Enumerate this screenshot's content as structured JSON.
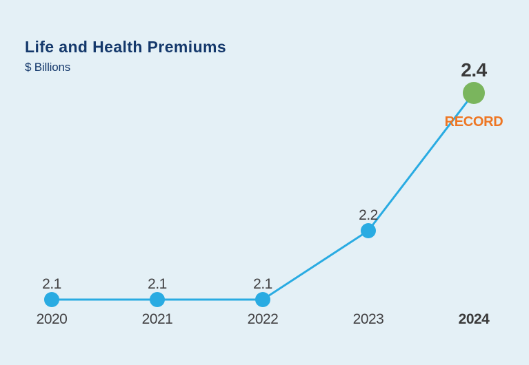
{
  "page": {
    "title": "Life and Health Premiums",
    "subtitle": "$ Billions"
  },
  "chart_data": {
    "type": "line",
    "title": "Life and Health Premiums",
    "ylabel": "$ Billions",
    "xlabel": "",
    "categories": [
      "2020",
      "2021",
      "2022",
      "2023",
      "2024"
    ],
    "values": [
      2.1,
      2.1,
      2.1,
      2.2,
      2.4
    ],
    "value_labels": [
      "2.1",
      "2.1",
      "2.1",
      "2.2",
      "2.4"
    ],
    "highlight_index": 4,
    "annotation": {
      "text": "RECORD",
      "applies_to": "2024"
    },
    "ylim": [
      2.05,
      2.45
    ],
    "grid": false,
    "legend": "none",
    "axis_lines": false,
    "colors": {
      "background": "#e4f0f6",
      "line": "#29abe2",
      "point": "#29abe2",
      "highlight_point": "#7ab55d",
      "title_text": "#14386b",
      "label_text": "#414042",
      "highlight_value_text": "#3a3a3a",
      "annotation_text": "#ee7623"
    }
  }
}
